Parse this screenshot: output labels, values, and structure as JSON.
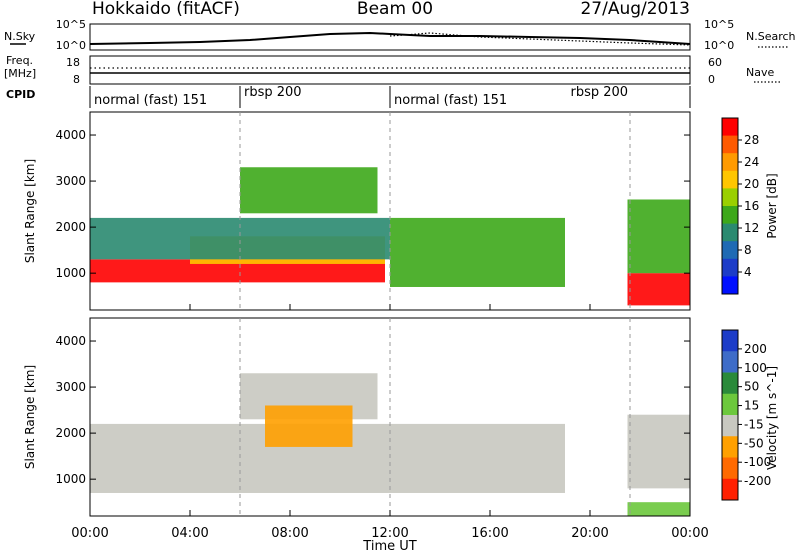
{
  "header": {
    "station": "Hokkaido (fitACF)",
    "beam": "Beam 00",
    "date": "27/Aug/2013"
  },
  "top_panels": {
    "nsky_label": "N.Sky",
    "nsearch_label": "N.Search",
    "nsky_ticks": [
      "10^5",
      "10^0"
    ],
    "nsearch_ticks": [
      "10^5",
      "10^0"
    ],
    "freq_label": "Freq.",
    "freq_unit": "[MHz]",
    "freq_ticks": [
      "18",
      "8"
    ],
    "nave_label": "Nave",
    "nave_ticks": [
      "60",
      "0"
    ],
    "cpid_label": "CPID",
    "cpid_segments": [
      {
        "start": 0,
        "end": 6,
        "label": "normal (fast) 151"
      },
      {
        "start": 6,
        "end": 12,
        "label": "rbsp 200"
      },
      {
        "start": 12,
        "end": 21.5,
        "label": "normal (fast) 151"
      },
      {
        "start": 19.3,
        "end": 21.5,
        "label": "rbsp 200"
      }
    ]
  },
  "panels": {
    "power": {
      "ylabel": "Slant Range [km]",
      "cbar_label": "Power [dB]",
      "cbar_ticks": [
        "28",
        "24",
        "20",
        "16",
        "12",
        "8",
        "4"
      ],
      "cbar_colors": [
        "#ff0000",
        "#ff5a00",
        "#ff9a00",
        "#ffc600",
        "#9ad000",
        "#3da81a",
        "#2a8a70",
        "#1f6ab4",
        "#1c3cc8",
        "#0010ff"
      ]
    },
    "velocity": {
      "ylabel": "Slant Range [km]",
      "cbar_label": "Velocity [m s^-1]",
      "cbar_ticks": [
        "200",
        "100",
        "50",
        "15",
        "-15",
        "-50",
        "-100",
        "-200"
      ],
      "cbar_colors": [
        "#1c3cc8",
        "#3e6cc8",
        "#2a8a3a",
        "#6cc83c",
        "#c8c8c0",
        "#ffa000",
        "#ff6a00",
        "#ff2000"
      ]
    }
  },
  "axis": {
    "xlabel": "Time UT",
    "xticks": [
      "00:00",
      "04:00",
      "08:00",
      "12:00",
      "16:00",
      "20:00",
      "00:00"
    ]
  },
  "chart_data": [
    {
      "type": "heatmap",
      "name": "Power",
      "ylabel": "Slant Range [km]",
      "xlabel": "Time UT",
      "xlim": [
        0,
        24
      ],
      "ylim": [
        200,
        4500
      ],
      "yticks": [
        1000,
        2000,
        3000,
        4000
      ],
      "colorbar": {
        "label": "Power [dB]",
        "ticks": [
          4,
          8,
          12,
          16,
          20,
          24,
          28
        ]
      },
      "regions": [
        {
          "t0": 0,
          "t1": 11.8,
          "r0": 800,
          "r1": 1300,
          "level": 28
        },
        {
          "t0": 4,
          "t1": 11.8,
          "r0": 1200,
          "r1": 1800,
          "level": 20
        },
        {
          "t0": 0,
          "t1": 12,
          "r0": 1300,
          "r1": 2200,
          "level": 10
        },
        {
          "t0": 6,
          "t1": 11.5,
          "r0": 2300,
          "r1": 3300,
          "level": 14
        },
        {
          "t0": 12,
          "t1": 19,
          "r0": 700,
          "r1": 2200,
          "level": 12
        },
        {
          "t0": 21.5,
          "t1": 24,
          "r0": 300,
          "r1": 1000,
          "level": 28
        },
        {
          "t0": 21.5,
          "t1": 24,
          "r0": 1000,
          "r1": 2600,
          "level": 14
        }
      ]
    },
    {
      "type": "heatmap",
      "name": "Velocity",
      "ylabel": "Slant Range [km]",
      "xlabel": "Time UT",
      "xlim": [
        0,
        24
      ],
      "ylim": [
        200,
        4500
      ],
      "yticks": [
        1000,
        2000,
        3000,
        4000
      ],
      "colorbar": {
        "label": "Velocity [m s^-1]",
        "ticks": [
          -200,
          -100,
          -50,
          -15,
          15,
          50,
          100,
          200
        ]
      },
      "regions": [
        {
          "t0": 0,
          "t1": 12,
          "r0": 700,
          "r1": 2200,
          "level": 0
        },
        {
          "t0": 6,
          "t1": 11.5,
          "r0": 2300,
          "r1": 3300,
          "level": 0
        },
        {
          "t0": 7,
          "t1": 10.5,
          "r0": 1700,
          "r1": 2600,
          "level": -40
        },
        {
          "t0": 12,
          "t1": 19,
          "r0": 700,
          "r1": 2200,
          "level": 0
        },
        {
          "t0": 21.5,
          "t1": 24,
          "r0": 800,
          "r1": 2400,
          "level": 0
        },
        {
          "t0": 21.5,
          "t1": 24,
          "r0": 200,
          "r1": 500,
          "level": 30
        }
      ]
    }
  ]
}
